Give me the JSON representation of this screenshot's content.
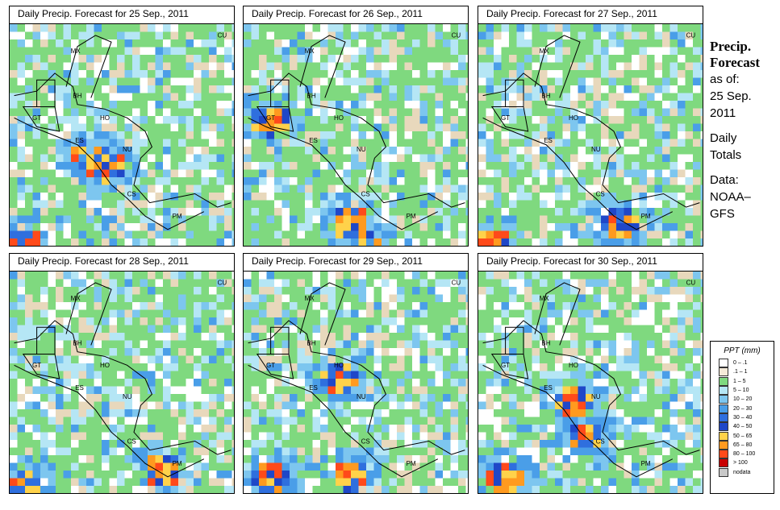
{
  "panels": [
    {
      "title": "Daily Precip. Forecast for  25 Sep., 2011",
      "seed": 11,
      "heavy": [
        [
          0.33,
          0.55
        ],
        [
          0.05,
          0.95
        ],
        [
          0.4,
          0.6
        ]
      ]
    },
    {
      "title": "Daily Precip. Forecast for  26 Sep., 2011",
      "seed": 23,
      "heavy": [
        [
          0.5,
          0.95
        ],
        [
          0.45,
          0.85
        ],
        [
          0.1,
          0.4
        ]
      ]
    },
    {
      "title": "Daily Precip. Forecast for  27 Sep., 2011",
      "seed": 37,
      "heavy": [
        [
          0.05,
          0.95
        ],
        [
          0.6,
          0.85
        ]
      ]
    },
    {
      "title": "Daily Precip. Forecast for  28 Sep., 2011",
      "seed": 41,
      "heavy": [
        [
          0.05,
          0.92
        ],
        [
          0.65,
          0.85
        ]
      ]
    },
    {
      "title": "Daily Precip. Forecast for  29 Sep., 2011",
      "seed": 53,
      "heavy": [
        [
          0.4,
          0.45
        ],
        [
          0.1,
          0.88
        ],
        [
          0.45,
          0.87
        ]
      ]
    },
    {
      "title": "Daily Precip. Forecast for  30 Sep., 2011",
      "seed": 67,
      "heavy": [
        [
          0.45,
          0.7
        ],
        [
          0.1,
          0.88
        ],
        [
          0.4,
          0.55
        ]
      ]
    }
  ],
  "country_labels": [
    "MX",
    "BH",
    "GT",
    "HO",
    "ES",
    "NU",
    "CS",
    "PM",
    "CU"
  ],
  "side": {
    "title_line1": "Precip.",
    "title_line2": "Forecast",
    "as_of": "as of:",
    "date_line1": "25 Sep.",
    "date_line2": "2011",
    "totals_line1": "Daily",
    "totals_line2": "Totals",
    "data_line1": "Data:",
    "data_line2": "NOAA–",
    "data_line3": "GFS"
  },
  "legend": {
    "title": "PPT (mm)",
    "items": [
      {
        "label": "0 – .1",
        "color": "#ffffff"
      },
      {
        "label": ".1 – 1",
        "color": "#f5ead8"
      },
      {
        "label": "1 – 5",
        "color": "#7fd97f"
      },
      {
        "label": "5 – 10",
        "color": "#b5e6f5"
      },
      {
        "label": "10 – 20",
        "color": "#7dc6ef"
      },
      {
        "label": "20 – 30",
        "color": "#4a9ee8"
      },
      {
        "label": "30 – 40",
        "color": "#2f6fde"
      },
      {
        "label": "40 – 50",
        "color": "#1f47c8"
      },
      {
        "label": "50 – 65",
        "color": "#ffd24a"
      },
      {
        "label": "65 – 80",
        "color": "#ff9a1f"
      },
      {
        "label": "80 – 100",
        "color": "#ff4a1a"
      },
      {
        "label": "> 100",
        "color": "#c80000"
      },
      {
        "label": "nodata",
        "color": "#c8c8c8"
      }
    ]
  },
  "colors": {
    "land_tan": "#e8d8bc",
    "border": "#000000"
  }
}
